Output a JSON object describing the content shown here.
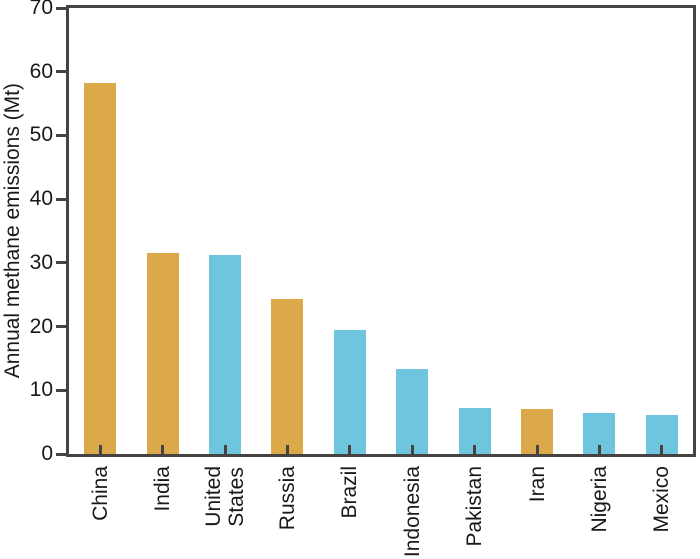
{
  "figure": {
    "kind": "static-bar-chart-figure"
  },
  "chart_data": {
    "type": "bar",
    "title": "",
    "xlabel": "",
    "ylabel": "Annual methane emissions (Mt)",
    "categories": [
      "China",
      "India",
      "United\nStates",
      "Russia",
      "Brazil",
      "Indonesia",
      "Pakistan",
      "Iran",
      "Nigeria",
      "Mexico"
    ],
    "values": [
      58.3,
      31.5,
      31.2,
      24.4,
      19.4,
      13.4,
      7.2,
      7.1,
      6.4,
      6.2
    ],
    "bar_colors": [
      "#DBA84A",
      "#DBA84A",
      "#6EC5DE",
      "#DBA84A",
      "#6EC5DE",
      "#6EC5DE",
      "#6EC5DE",
      "#DBA84A",
      "#6EC5DE",
      "#6EC5DE"
    ],
    "ylim": [
      0,
      70
    ],
    "yticks": [
      0,
      10,
      20,
      30,
      40,
      50,
      60,
      70
    ],
    "grid": false,
    "legend_position": "none"
  },
  "colors": {
    "bar_orange": "#DBA84A",
    "bar_blue": "#6EC5DE",
    "axis": "#474242",
    "text": "#1B1918",
    "background": "#FFFFFF"
  }
}
